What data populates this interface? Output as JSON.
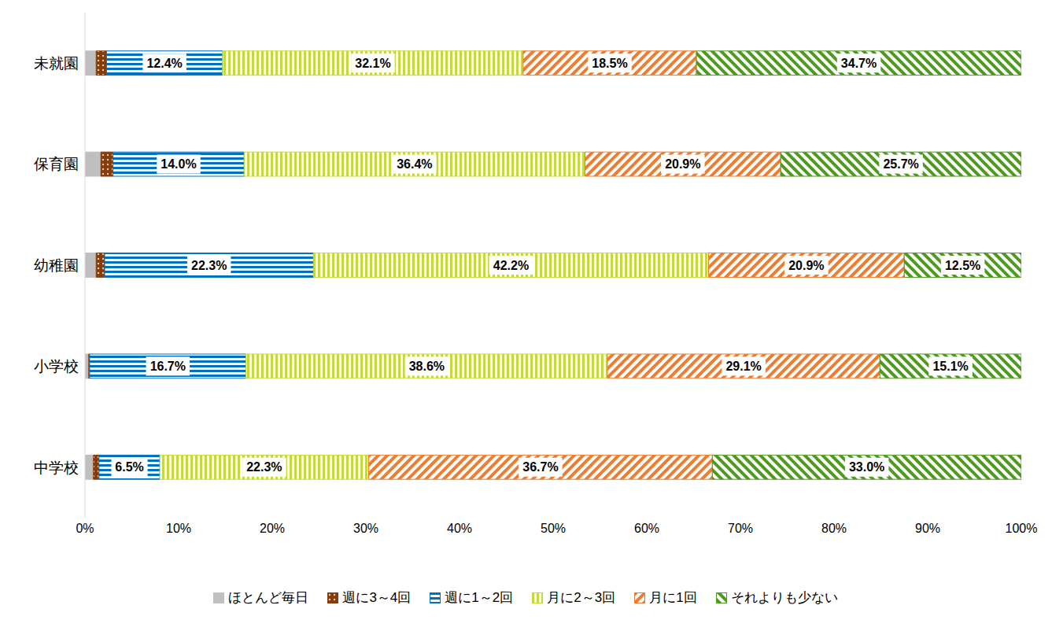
{
  "chart_data": {
    "type": "bar",
    "orientation": "horizontal",
    "stacked": true,
    "grid": false,
    "legend": "bottom",
    "categories": [
      "未就園",
      "保育園",
      "幼稚園",
      "小学校",
      "中学校"
    ],
    "xlim": [
      0,
      100
    ],
    "xticks": [
      {
        "value": 0,
        "label": "0%"
      },
      {
        "value": 10,
        "label": "10%"
      },
      {
        "value": 20,
        "label": "20%"
      },
      {
        "value": 30,
        "label": "30%"
      },
      {
        "value": 40,
        "label": "40%"
      },
      {
        "value": 50,
        "label": "50%"
      },
      {
        "value": 60,
        "label": "60%"
      },
      {
        "value": 70,
        "label": "70%"
      },
      {
        "value": 80,
        "label": "80%"
      },
      {
        "value": 90,
        "label": "90%"
      },
      {
        "value": 100,
        "label": "100%"
      }
    ],
    "series": [
      {
        "name": "ほとんど毎日",
        "color": "#bfbfbf",
        "values": [
          1.2,
          1.7,
          1.2,
          0.4,
          0.9
        ],
        "data_labels": false
      },
      {
        "name": "週に3～4回",
        "color": "#843c0c",
        "values": [
          1.1,
          1.3,
          0.9,
          0.1,
          0.6
        ],
        "data_labels": false
      },
      {
        "name": "週に1～2回",
        "color": "#0070c0",
        "values": [
          12.4,
          14.0,
          22.3,
          16.7,
          6.5
        ],
        "value_labels": [
          "12.4%",
          "14.0%",
          "22.3%",
          "16.7%",
          "6.5%"
        ],
        "data_labels": true
      },
      {
        "name": "月に2～3回",
        "color": "#c5d93a",
        "values": [
          32.1,
          36.4,
          42.2,
          38.6,
          22.3
        ],
        "value_labels": [
          "32.1%",
          "36.4%",
          "42.2%",
          "38.6%",
          "22.3%"
        ],
        "data_labels": true
      },
      {
        "name": "月に1回",
        "color": "#ed7d31",
        "values": [
          18.5,
          20.9,
          20.9,
          29.1,
          36.7
        ],
        "value_labels": [
          "18.5%",
          "20.9%",
          "20.9%",
          "29.1%",
          "36.7%"
        ],
        "data_labels": true
      },
      {
        "name": "それよりも少ない",
        "color": "#4e9a1e",
        "values": [
          34.7,
          25.7,
          12.5,
          15.1,
          33.0
        ],
        "value_labels": [
          "34.7%",
          "25.7%",
          "12.5%",
          "15.1%",
          "33.0%"
        ],
        "data_labels": true
      }
    ]
  }
}
